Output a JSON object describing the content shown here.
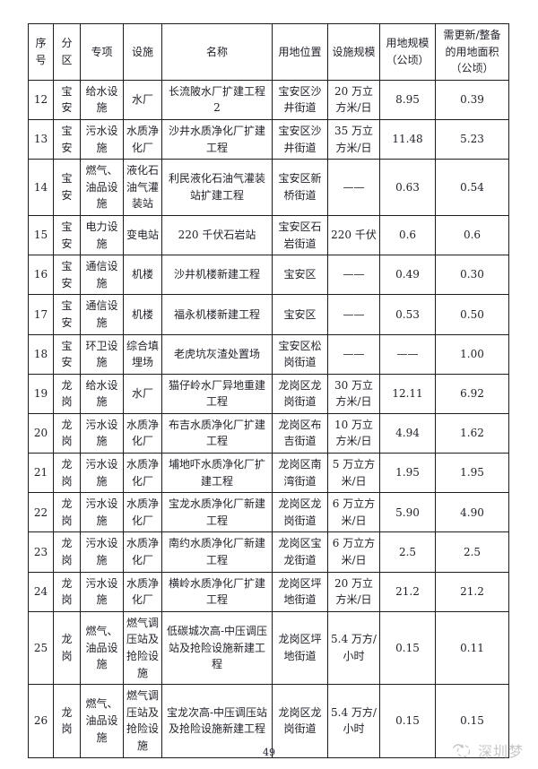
{
  "table": {
    "headers": [
      "序号",
      "分区",
      "专项",
      "设施",
      "名称",
      "用地位置",
      "设施规模",
      "用地规模（公顷）",
      "需更新/整备的用地面积（公顷）"
    ],
    "rows": [
      [
        "12",
        "宝安",
        "给水设施",
        "水厂",
        "长流陂水厂扩建工程 2",
        "宝安区沙井街道",
        "20 万立方米/日",
        "8.95",
        "0.39"
      ],
      [
        "13",
        "宝安",
        "污水设施",
        "水质净化厂",
        "沙井水质净化厂扩建工程",
        "宝安区沙井街道",
        "35 万立方米/日",
        "11.48",
        "5.23"
      ],
      [
        "14",
        "宝安",
        "燃气、油品设施",
        "液化石油气灌装站",
        "利民液化石油气灌装站扩建工程",
        "宝安区新桥街道",
        "——",
        "0.63",
        "0.54"
      ],
      [
        "15",
        "宝安",
        "电力设施",
        "变电站",
        "220 千伏石岩站",
        "宝安区石岩街道",
        "220 千伏",
        "0.6",
        "0.6"
      ],
      [
        "16",
        "宝安",
        "通信设施",
        "机楼",
        "沙井机楼新建工程",
        "宝安区",
        "——",
        "0.49",
        "0.30"
      ],
      [
        "17",
        "宝安",
        "通信设施",
        "机楼",
        "福永机楼新建工程",
        "宝安区",
        "——",
        "0.53",
        "0.50"
      ],
      [
        "18",
        "宝安",
        "环卫设施",
        "综合填埋场",
        "老虎坑灰渣处置场",
        "宝安区松岗街道",
        "——",
        "——",
        "1.00"
      ],
      [
        "19",
        "龙岗",
        "给水设施",
        "水厂",
        "猫仔岭水厂异地重建工程",
        "龙岗区龙岗街道",
        "30 万立方米/日",
        "12.11",
        "6.92"
      ],
      [
        "20",
        "龙岗",
        "污水设施",
        "水质净化厂",
        "布吉水质净化厂扩建工程",
        "龙岗区布吉街道",
        "10 万立方米/日",
        "4.94",
        "1.62"
      ],
      [
        "21",
        "龙岗",
        "污水设施",
        "水质净化厂",
        "埔地吓水质净化厂扩建工程",
        "龙岗区南湾街道",
        "5 万立方米/日",
        "1.95",
        "1.95"
      ],
      [
        "22",
        "龙岗",
        "污水设施",
        "水质净化厂",
        "宝龙水质净化厂新建工程",
        "龙岗区龙岗街道",
        "6 万立方米/日",
        "5.90",
        "4.90"
      ],
      [
        "23",
        "龙岗",
        "污水设施",
        "水质净化厂",
        "南约水质净化厂新建工程",
        "龙岗区宝龙街道",
        "6 万立方米/日",
        "2.5",
        "2.5"
      ],
      [
        "24",
        "龙岗",
        "污水设施",
        "水质净化厂",
        "横岭水质净化厂扩建工程",
        "龙岗区坪地街道",
        "20 万立方米/日",
        "21.2",
        "21.2"
      ],
      [
        "25",
        "龙岗",
        "燃气、油品设施",
        "燃气调压站及抢险设施",
        "低碳城次高-中压调压站及抢险设施新建工程",
        "龙岗区坪地街道",
        "5.4 万方/小时",
        "0.15",
        "0.11"
      ],
      [
        "26",
        "龙岗",
        "燃气、油品设施",
        "燃气调压站及抢险设施",
        "宝龙次高-中压调压站及抢险设施新建工程",
        "龙岗区龙岗街道",
        "5.4 万方/小时",
        "0.15",
        "0.15"
      ]
    ],
    "column_names": [
      "row-number",
      "district",
      "category",
      "facility",
      "project-name",
      "land-location",
      "facility-scale",
      "land-scale",
      "renewal-area"
    ]
  },
  "footer": {
    "page_number": "49",
    "watermark_text": "深圳梦"
  },
  "colors": {
    "border": "#1c1c1c",
    "text": "#1f1f28",
    "watermark": "#c7c7c7",
    "background": "#ffffff"
  }
}
